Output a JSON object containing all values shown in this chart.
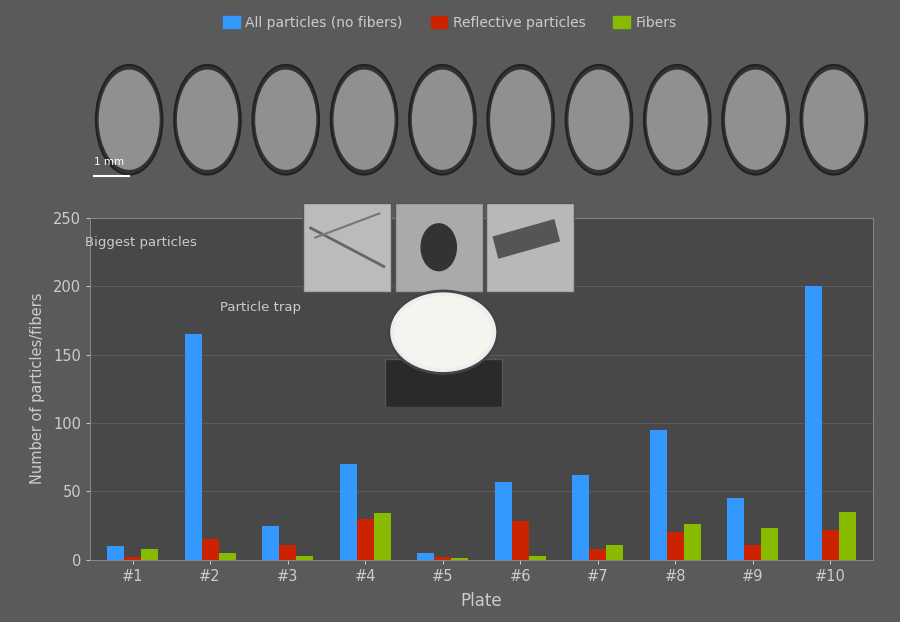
{
  "categories": [
    "#1",
    "#2",
    "#3",
    "#4",
    "#5",
    "#6",
    "#7",
    "#8",
    "#9",
    "#10"
  ],
  "all_particles": [
    10,
    165,
    25,
    70,
    5,
    57,
    62,
    95,
    45,
    200
  ],
  "reflective": [
    2,
    15,
    11,
    30,
    2,
    28,
    8,
    20,
    11,
    22
  ],
  "fibers": [
    8,
    5,
    3,
    34,
    1,
    3,
    11,
    26,
    23,
    35
  ],
  "bar_colors": {
    "all": "#3399FF",
    "reflective": "#CC2200",
    "fibers": "#88BB00"
  },
  "legend": {
    "all": "All particles (no fibers)",
    "reflective": "Reflective particles",
    "fibers": "Fibers"
  },
  "xlabel": "Plate",
  "ylabel": "Number of particles/fibers",
  "ylim": [
    0,
    250
  ],
  "yticks": [
    0,
    50,
    100,
    150,
    200,
    250
  ],
  "bg_color": "#5a5a5a",
  "plot_bg_color": "#484848",
  "text_color": "#CCCCCC",
  "bar_width": 0.22
}
